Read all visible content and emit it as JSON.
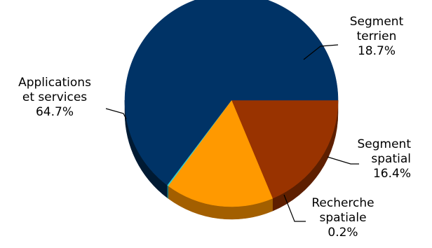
{
  "chart_data": {
    "type": "pie",
    "style": "3d",
    "title": "",
    "slices": [
      {
        "label_lines": [
          "Segment",
          "terrien"
        ],
        "percent_label": "18.7%",
        "value": 18.7,
        "color": "#993300",
        "side_color": "#5e1f00"
      },
      {
        "label_lines": [
          "Segment",
          "spatial"
        ],
        "percent_label": "16.4%",
        "value": 16.4,
        "color": "#ff9900",
        "side_color": "#a35f00"
      },
      {
        "label_lines": [
          "Recherche",
          "spatiale"
        ],
        "percent_label": "0.2%",
        "value": 0.2,
        "color": "#33cccc",
        "side_color": "#1f7f7f"
      },
      {
        "label_lines": [
          "Applications",
          "et services"
        ],
        "percent_label": "64.7%",
        "value": 64.7,
        "color": "#003366",
        "side_color": "#001a33"
      }
    ]
  }
}
